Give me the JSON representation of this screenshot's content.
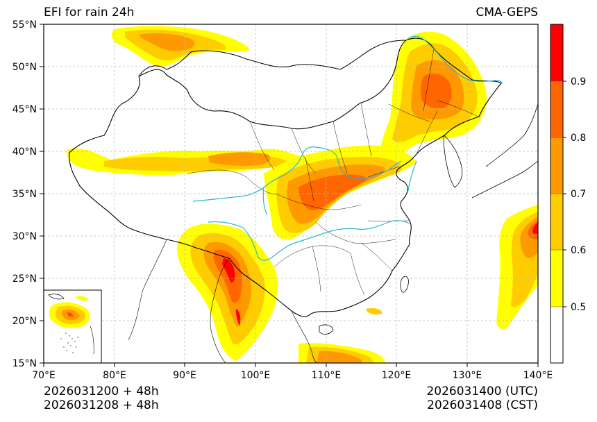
{
  "map": {
    "title_left": "EFI for rain 24h",
    "title_right": "CMA-GEPS",
    "extent": {
      "lon": [
        70,
        140
      ],
      "lat": [
        15,
        55
      ]
    },
    "lat_ticks": [
      "55°N",
      "50°N",
      "45°N",
      "40°N",
      "35°N",
      "30°N",
      "25°N",
      "20°N",
      "15°N"
    ],
    "lon_ticks": [
      "70°E",
      "80°E",
      "90°E",
      "100°E",
      "110°E",
      "120°E",
      "130°E",
      "140°E"
    ],
    "init_utc": "2026031200 + 48h",
    "init_cst": "2026031208 + 48h",
    "valid_utc": "2026031400 (UTC)",
    "valid_cst": "2026031408 (CST)"
  },
  "colorbar": {
    "labels": [
      "0.9",
      "0.8",
      "0.7",
      "0.6",
      "0.5"
    ],
    "colors": [
      "#ff0000",
      "#ff6600",
      "#ff9900",
      "#ffcc00",
      "#ffff00",
      "#ffffff"
    ]
  },
  "palette": {
    "river": "#2ab7d6",
    "border": "#000000",
    "grid": "#bbbbbb"
  }
}
